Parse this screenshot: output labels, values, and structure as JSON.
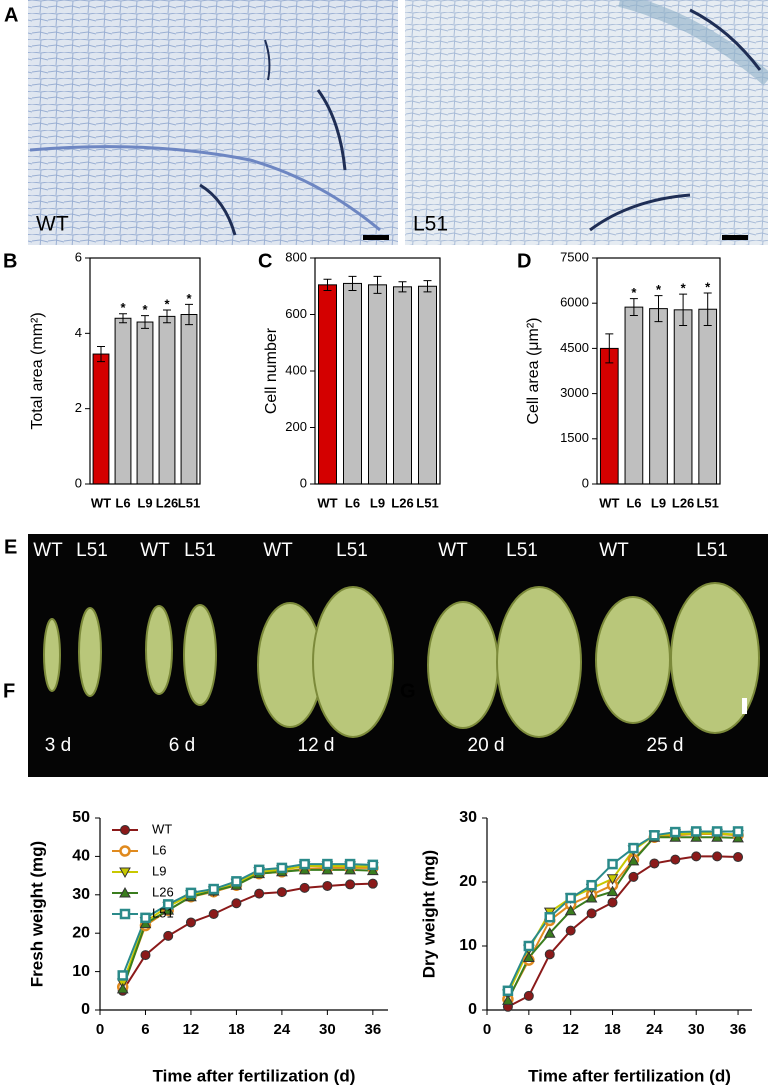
{
  "panel_a": {
    "letter": "A",
    "labels": [
      "WT",
      "L51"
    ]
  },
  "panel_e": {
    "letter": "E",
    "pair_labels": [
      [
        "WT",
        "L51"
      ],
      [
        "WT",
        "L51"
      ],
      [
        "WT",
        "L51"
      ],
      [
        "WT",
        "L51"
      ],
      [
        "WT",
        "L51"
      ]
    ],
    "days": [
      "3 d",
      "6 d",
      "12 d",
      "20 d",
      "25 d"
    ]
  },
  "chart_data": [
    {
      "type": "bar",
      "panel": "B",
      "ylabel": "Total area (mm²)",
      "categories": [
        "WT",
        "L6",
        "L9",
        "L26",
        "L51"
      ],
      "values": [
        3.45,
        4.4,
        4.3,
        4.45,
        4.5
      ],
      "errors": [
        0.2,
        0.12,
        0.17,
        0.17,
        0.27
      ],
      "colors": [
        "#d40000",
        "#bfbfbf",
        "#bfbfbf",
        "#bfbfbf",
        "#bfbfbf"
      ],
      "significance": [
        null,
        "*",
        "*",
        "*",
        "*"
      ],
      "ylim": [
        0,
        6
      ],
      "yticks": [
        0,
        2,
        4,
        6
      ]
    },
    {
      "type": "bar",
      "panel": "C",
      "ylabel": "Cell number",
      "categories": [
        "WT",
        "L6",
        "L9",
        "L26",
        "L51"
      ],
      "values": [
        705,
        710,
        705,
        698,
        700
      ],
      "errors": [
        20,
        25,
        30,
        18,
        20
      ],
      "colors": [
        "#d40000",
        "#bfbfbf",
        "#bfbfbf",
        "#bfbfbf",
        "#bfbfbf"
      ],
      "ylim": [
        0,
        800
      ],
      "yticks": [
        0,
        200,
        400,
        600,
        800
      ]
    },
    {
      "type": "bar",
      "panel": "D",
      "ylabel": "Cell area (μm²)",
      "categories": [
        "WT",
        "L6",
        "L9",
        "L26",
        "L51"
      ],
      "values": [
        4500,
        5870,
        5820,
        5780,
        5800
      ],
      "errors": [
        480,
        280,
        430,
        520,
        540
      ],
      "colors": [
        "#d40000",
        "#bfbfbf",
        "#bfbfbf",
        "#bfbfbf",
        "#bfbfbf"
      ],
      "significance": [
        null,
        "*",
        "*",
        "*",
        "*"
      ],
      "ylim": [
        0,
        7500
      ],
      "yticks": [
        0,
        1500,
        3000,
        4500,
        6000,
        7500
      ]
    },
    {
      "type": "line",
      "panel": "F",
      "xlabel": "Time after fertilization (d)",
      "ylabel": "Fresh weight (mg)",
      "x": [
        3,
        6,
        9,
        12,
        15,
        18,
        21,
        24,
        27,
        30,
        33,
        36
      ],
      "series": [
        {
          "name": "WT",
          "color": "#8b1a1a",
          "marker": "circle",
          "values": [
            5,
            14.3,
            19.3,
            22.8,
            25,
            27.8,
            30.3,
            30.7,
            31.8,
            32.3,
            32.7,
            32.9
          ]
        },
        {
          "name": "L6",
          "color": "#e08a1e",
          "marker": "hexagon",
          "values": [
            6,
            22,
            26,
            29.5,
            30.8,
            32.5,
            35.5,
            36,
            36.8,
            37,
            37,
            37
          ]
        },
        {
          "name": "L9",
          "color": "#c8c800",
          "marker": "triangle-down",
          "values": [
            7,
            23,
            27,
            30,
            31,
            33,
            36,
            36.5,
            37.5,
            37.5,
            37.5,
            37.3
          ]
        },
        {
          "name": "L26",
          "color": "#3a7d1e",
          "marker": "triangle-up",
          "values": [
            5.5,
            22.5,
            26,
            29.5,
            31,
            32.5,
            35.5,
            36,
            36.5,
            36.5,
            36.5,
            36.3
          ]
        },
        {
          "name": "L51",
          "color": "#2a8a8a",
          "marker": "square",
          "values": [
            9,
            24,
            27.5,
            30.5,
            31.5,
            33.5,
            36.5,
            37,
            38,
            38,
            38,
            37.8
          ]
        }
      ],
      "xlim": [
        0,
        38
      ],
      "ylim": [
        0,
        50
      ],
      "xticks": [
        0,
        6,
        12,
        18,
        24,
        30,
        36
      ],
      "yticks": [
        0,
        10,
        20,
        30,
        40,
        50
      ],
      "legend": "upper left"
    },
    {
      "type": "line",
      "panel": "G",
      "xlabel": "Time after fertilization (d)",
      "ylabel": "Dry weight (mg)",
      "x": [
        3,
        6,
        9,
        12,
        15,
        18,
        21,
        24,
        27,
        30,
        33,
        36
      ],
      "series": [
        {
          "color": "#8b1a1a",
          "marker": "circle",
          "values": [
            0.5,
            2.2,
            8.7,
            12.4,
            15.1,
            16.8,
            20.8,
            22.9,
            23.5,
            24,
            24,
            23.9
          ]
        },
        {
          "color": "#e08a1e",
          "marker": "hexagon",
          "values": [
            1.7,
            7.8,
            14,
            16.5,
            18,
            19.5,
            23.5,
            27,
            27.3,
            27.5,
            27.5,
            27.3
          ]
        },
        {
          "color": "#c8c800",
          "marker": "triangle-down",
          "values": [
            2.5,
            9.5,
            15.3,
            17.5,
            19,
            20.5,
            25,
            27.3,
            27.5,
            27.6,
            27.6,
            27.4
          ]
        },
        {
          "color": "#3a7d1e",
          "marker": "triangle-up",
          "values": [
            1.5,
            8.2,
            12,
            15.5,
            17.5,
            18.5,
            23.3,
            27,
            27,
            27,
            27,
            26.9
          ]
        },
        {
          "color": "#2a8a8a",
          "marker": "square",
          "values": [
            3,
            10,
            14.5,
            17.5,
            19.5,
            22.8,
            25.3,
            27.3,
            27.8,
            27.9,
            27.9,
            27.9
          ]
        }
      ],
      "xlim": [
        0,
        38
      ],
      "ylim": [
        0,
        30
      ],
      "xticks": [
        0,
        6,
        12,
        18,
        24,
        30,
        36
      ],
      "yticks": [
        0,
        10,
        20,
        30
      ]
    }
  ]
}
